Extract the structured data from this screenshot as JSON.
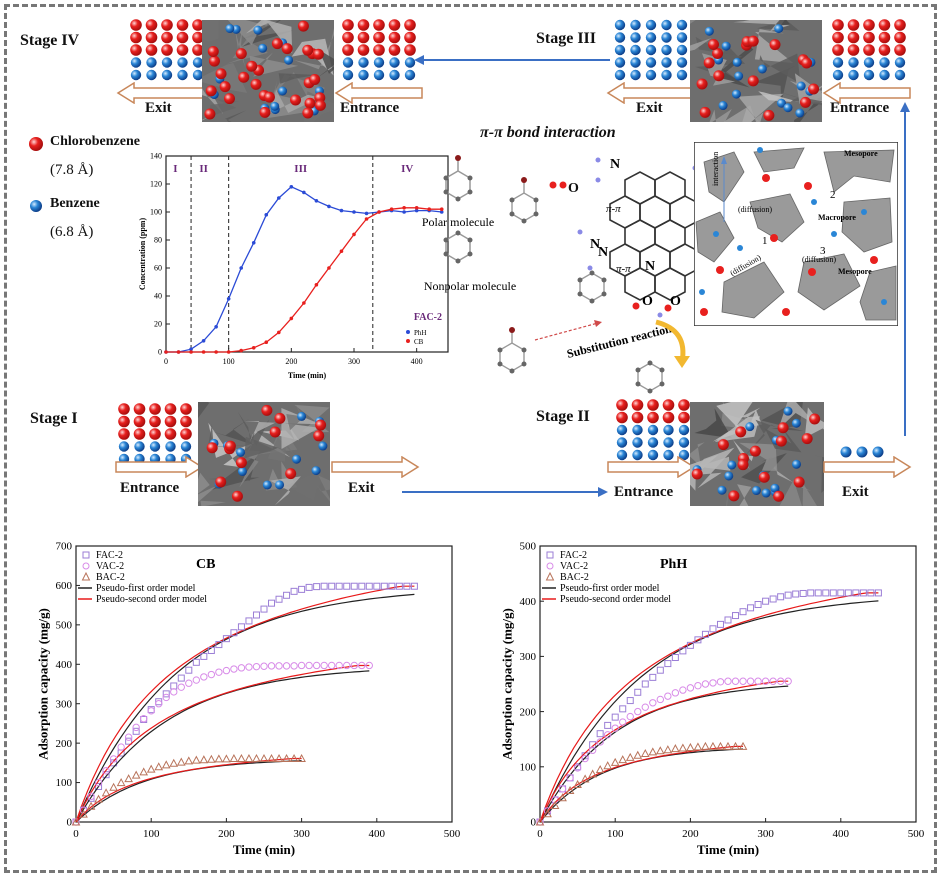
{
  "stages": {
    "stage_iv": {
      "title": "Stage IV",
      "exit": "Exit",
      "entrance": "Entrance"
    },
    "stage_iii": {
      "title": "Stage III",
      "exit": "Exit",
      "entrance": "Entrance"
    },
    "stage_i": {
      "title": "Stage I",
      "entrance": "Entrance",
      "exit": "Exit"
    },
    "stage_ii": {
      "title": "Stage II",
      "entrance": "Entrance",
      "exit": "Exit"
    }
  },
  "legend_molecules": {
    "chlorobenzene": "Chlorobenzene",
    "chlorobenzene_size": "(7.8 Å)",
    "benzene": "Benzene",
    "benzene_size": "(6.8 Å)"
  },
  "mechanism": {
    "title": "π-π bond interaction",
    "polar": "Polar molecule",
    "nonpolar": "Nonpolar molecule",
    "substitution": "Substitution reaction",
    "pi1": "π-π",
    "pi2": "π-π",
    "atom_n1": "N",
    "atom_n2": "N",
    "atom_n3": "N",
    "atom_n4": "N",
    "atom_o1": "O",
    "atom_o2": "O",
    "atom_o3": "O",
    "pore": {
      "mesopore1": "Mesopore",
      "mesopore2": "Mesopore",
      "macropore": "Macropore",
      "interaction": "interaction",
      "diffusion1": "(diffusion)",
      "diffusion2": "(diffusion)",
      "diffusion3": "(diffusion)",
      "n1": "1",
      "n2": "2",
      "n3": "3"
    }
  },
  "colors": {
    "red": "#e8201e",
    "blue": "#1f3fc8",
    "arrow": "#3a6fc4",
    "series_blue": "#2b4bd6",
    "series_red": "#e8201e",
    "purple": "#9b7ed6",
    "pink": "#d88be8",
    "brown": "#b8735a"
  },
  "chart_data": [
    {
      "type": "scatter",
      "title": "FAC-2",
      "xlabel": "Time (min)",
      "ylabel": "Concentration (ppm)",
      "xlim": [
        0,
        450
      ],
      "ylim": [
        0,
        140
      ],
      "xticks": [
        "0",
        "100",
        "200",
        "300",
        "400"
      ],
      "yticks": [
        "0",
        "20",
        "40",
        "60",
        "80",
        "100",
        "120",
        "140"
      ],
      "regions": [
        {
          "label": "I",
          "x": 15
        },
        {
          "label": "II",
          "x": 60
        },
        {
          "label": "III",
          "x": 215
        },
        {
          "label": "IV",
          "x": 385
        }
      ],
      "dividers": [
        40,
        100,
        330
      ],
      "series": [
        {
          "name": "PhH",
          "color": "#2b4bd6",
          "x": [
            0,
            20,
            40,
            60,
            80,
            100,
            120,
            140,
            160,
            180,
            200,
            220,
            240,
            260,
            280,
            300,
            320,
            340,
            360,
            380,
            400,
            420,
            440
          ],
          "y": [
            0,
            0,
            2,
            8,
            18,
            38,
            60,
            78,
            98,
            110,
            118,
            114,
            108,
            104,
            101,
            100,
            99,
            100,
            101,
            100,
            101,
            101,
            100
          ]
        },
        {
          "name": "CB",
          "color": "#e8201e",
          "x": [
            0,
            20,
            40,
            60,
            80,
            100,
            120,
            140,
            160,
            180,
            200,
            220,
            240,
            260,
            280,
            300,
            320,
            340,
            360,
            380,
            400,
            420,
            440
          ],
          "y": [
            0,
            0,
            0,
            0,
            0,
            0,
            1,
            3,
            7,
            14,
            24,
            35,
            48,
            60,
            72,
            84,
            95,
            100,
            102,
            103,
            103,
            102,
            102
          ]
        }
      ],
      "legend_position": "bottom-right"
    },
    {
      "type": "scatter",
      "title": "CB",
      "xlabel": "Time (min)",
      "ylabel": "Adsorption capacity (mg/g)",
      "xlim": [
        0,
        500
      ],
      "ylim": [
        0,
        700
      ],
      "xticks": [
        "0",
        "100",
        "200",
        "300",
        "400",
        "500"
      ],
      "yticks": [
        "0",
        "100",
        "200",
        "300",
        "400",
        "500",
        "600",
        "700"
      ],
      "legend_position": "top-left",
      "series": [
        {
          "name": "FAC-2",
          "marker": "square",
          "color": "#9b7ed6",
          "x": [
            0,
            10,
            20,
            30,
            40,
            50,
            60,
            70,
            80,
            90,
            100,
            110,
            120,
            130,
            140,
            150,
            160,
            170,
            180,
            190,
            200,
            210,
            220,
            230,
            240,
            250,
            260,
            270,
            280,
            290,
            300,
            310,
            320,
            330,
            340,
            350,
            360,
            370,
            380,
            390,
            400,
            410,
            420,
            430,
            440,
            450
          ],
          "y": [
            0,
            30,
            60,
            90,
            120,
            150,
            175,
            205,
            230,
            260,
            285,
            305,
            325,
            345,
            365,
            385,
            405,
            420,
            435,
            450,
            465,
            480,
            495,
            510,
            525,
            540,
            555,
            565,
            575,
            585,
            590,
            595,
            597,
            598,
            598,
            598,
            598,
            598,
            598,
            598,
            598,
            598,
            598,
            598,
            598,
            598
          ]
        },
        {
          "name": "VAC-2",
          "marker": "circle",
          "color": "#d88be8",
          "x": [
            0,
            10,
            20,
            30,
            40,
            50,
            60,
            70,
            80,
            90,
            100,
            110,
            120,
            130,
            140,
            150,
            160,
            170,
            180,
            190,
            200,
            210,
            220,
            230,
            240,
            250,
            260,
            270,
            280,
            290,
            300,
            310,
            320,
            330,
            340,
            350,
            360,
            370,
            380,
            390
          ],
          "y": [
            0,
            30,
            65,
            100,
            130,
            160,
            190,
            215,
            240,
            262,
            282,
            300,
            316,
            330,
            342,
            352,
            360,
            368,
            374,
            380,
            384,
            388,
            391,
            393,
            394,
            395,
            396,
            396,
            396,
            396,
            397,
            397,
            397,
            397,
            397,
            397,
            397,
            397,
            397,
            397
          ]
        },
        {
          "name": "BAC-2",
          "marker": "triangle",
          "color": "#b8735a",
          "x": [
            0,
            10,
            20,
            30,
            40,
            50,
            60,
            70,
            80,
            90,
            100,
            110,
            120,
            130,
            140,
            150,
            160,
            170,
            180,
            190,
            200,
            210,
            220,
            230,
            240,
            250,
            260,
            270,
            280,
            290,
            300
          ],
          "y": [
            0,
            20,
            40,
            58,
            74,
            88,
            100,
            110,
            119,
            127,
            134,
            140,
            145,
            149,
            152,
            155,
            157,
            158,
            159,
            160,
            160,
            161,
            161,
            161,
            161,
            161,
            161,
            161,
            161,
            161,
            161
          ]
        },
        {
          "name": "Pseudo-first order model",
          "marker": "line",
          "color": "#222222",
          "model": true
        },
        {
          "name": "Pseudo-second order model",
          "marker": "line",
          "color": "#e81a1a",
          "model": true
        }
      ]
    },
    {
      "type": "scatter",
      "title": "PhH",
      "xlabel": "Time (min)",
      "ylabel": "Adsorption capacity (mg/g)",
      "xlim": [
        0,
        500
      ],
      "ylim": [
        0,
        500
      ],
      "xticks": [
        "0",
        "100",
        "200",
        "300",
        "400",
        "500"
      ],
      "yticks": [
        "0",
        "100",
        "200",
        "300",
        "400",
        "500"
      ],
      "legend_position": "top-left",
      "series": [
        {
          "name": "FAC-2",
          "marker": "square",
          "color": "#9b7ed6",
          "x": [
            0,
            10,
            20,
            30,
            40,
            50,
            60,
            70,
            80,
            90,
            100,
            110,
            120,
            130,
            140,
            150,
            160,
            170,
            180,
            190,
            200,
            210,
            220,
            230,
            240,
            250,
            260,
            270,
            280,
            290,
            300,
            310,
            320,
            330,
            340,
            350,
            360,
            370,
            380,
            390,
            400,
            410,
            420,
            430,
            440,
            450
          ],
          "y": [
            0,
            20,
            40,
            60,
            80,
            100,
            120,
            140,
            160,
            175,
            190,
            205,
            220,
            235,
            250,
            262,
            275,
            287,
            298,
            310,
            320,
            330,
            340,
            350,
            358,
            366,
            374,
            381,
            388,
            394,
            400,
            404,
            408,
            411,
            413,
            414,
            415,
            415,
            415,
            415,
            415,
            415,
            415,
            415,
            415,
            415
          ]
        },
        {
          "name": "VAC-2",
          "marker": "circle",
          "color": "#d88be8",
          "x": [
            0,
            10,
            20,
            30,
            40,
            50,
            60,
            70,
            80,
            90,
            100,
            110,
            120,
            130,
            140,
            150,
            160,
            170,
            180,
            190,
            200,
            210,
            220,
            230,
            240,
            250,
            260,
            270,
            280,
            290,
            300,
            310,
            320,
            330
          ],
          "y": [
            0,
            20,
            40,
            60,
            80,
            98,
            115,
            130,
            145,
            158,
            170,
            181,
            191,
            200,
            208,
            216,
            222,
            228,
            234,
            239,
            243,
            247,
            250,
            252,
            254,
            255,
            255,
            255,
            255,
            255,
            255,
            255,
            255,
            255
          ]
        },
        {
          "name": "BAC-2",
          "marker": "triangle",
          "color": "#b8735a",
          "x": [
            0,
            10,
            20,
            30,
            40,
            50,
            60,
            70,
            80,
            90,
            100,
            110,
            120,
            130,
            140,
            150,
            160,
            170,
            180,
            190,
            200,
            210,
            220,
            230,
            240,
            250,
            260,
            270
          ],
          "y": [
            0,
            15,
            30,
            44,
            57,
            68,
            78,
            87,
            95,
            102,
            108,
            113,
            117,
            121,
            124,
            127,
            129,
            131,
            133,
            134,
            135,
            136,
            137,
            137,
            137,
            137,
            137,
            137
          ]
        },
        {
          "name": "Pseudo-first order model",
          "marker": "line",
          "color": "#222222",
          "model": true
        },
        {
          "name": "Pseudo-second order model",
          "marker": "line",
          "color": "#e81a1a",
          "model": true
        }
      ]
    }
  ]
}
